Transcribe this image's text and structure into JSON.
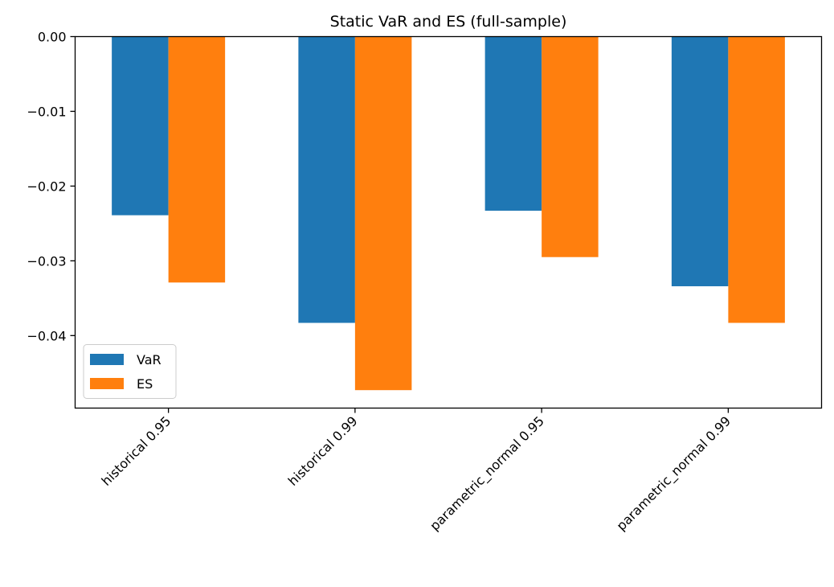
{
  "chart_data": {
    "type": "bar",
    "title": "Static VaR and ES (full-sample)",
    "xlabel": "",
    "ylabel": "",
    "categories": [
      "historical 0.95",
      "historical 0.99",
      "parametric_normal 0.95",
      "parametric_normal 0.99"
    ],
    "series": [
      {
        "name": "VaR",
        "color": "#1f77b4",
        "values": [
          -0.0239,
          -0.0383,
          -0.0233,
          -0.0334
        ]
      },
      {
        "name": "ES",
        "color": "#ff7f0e",
        "values": [
          -0.0329,
          -0.0473,
          -0.0295,
          -0.0383
        ]
      }
    ],
    "ylim": [
      -0.0497,
      0.0
    ],
    "yticks": [
      0.0,
      -0.01,
      -0.02,
      -0.03,
      -0.04
    ],
    "ytick_labels": [
      "0.00",
      "−0.01",
      "−0.02",
      "−0.03",
      "−0.04"
    ],
    "grid": false,
    "legend_position": "lower-left",
    "xtick_rotation": "45-degree"
  }
}
